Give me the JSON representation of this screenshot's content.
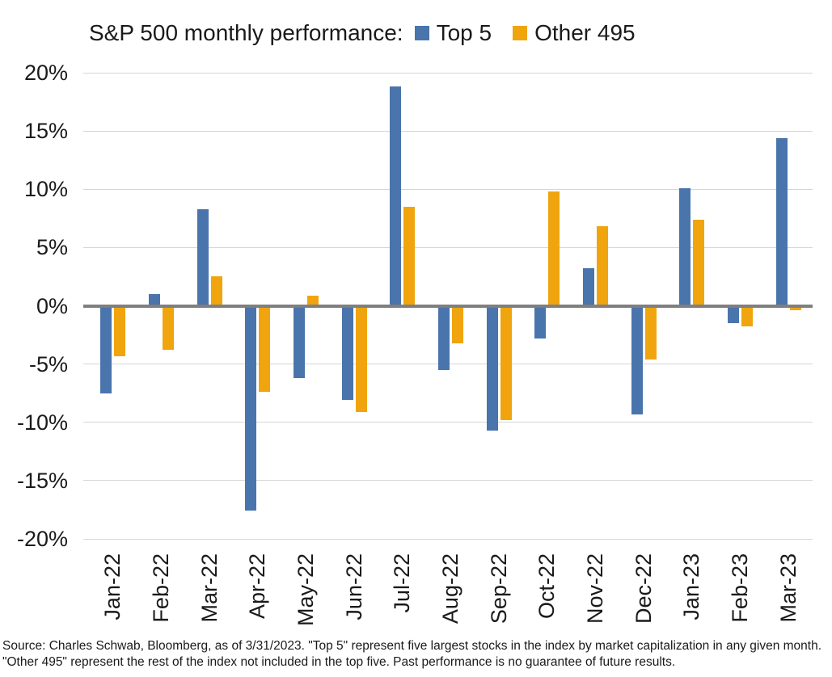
{
  "title": "S&P 500 monthly performance:",
  "legend": [
    {
      "label": "Top 5",
      "color": "#4A74AC"
    },
    {
      "label": "Other 495",
      "color": "#F0A50E"
    }
  ],
  "source_note": "Source: Charles Schwab, Bloomberg, as of 3/31/2023.  \"Top 5\" represent five largest stocks in the index by market capitalization in any given month. \"Other 495\" represent the rest of the index not included in the top five. Past performance is no guarantee of future results.",
  "chart_data": {
    "type": "bar",
    "title": "S&P 500 monthly performance:",
    "categories": [
      "Jan-22",
      "Feb-22",
      "Mar-22",
      "Apr-22",
      "May-22",
      "Jun-22",
      "Jul-22",
      "Aug-22",
      "Sep-22",
      "Oct-22",
      "Nov-22",
      "Dec-22",
      "Jan-23",
      "Feb-23",
      "Mar-23"
    ],
    "series": [
      {
        "name": "Top 5",
        "color": "#4A74AC",
        "values": [
          -7.5,
          1.0,
          8.3,
          -17.6,
          -6.2,
          -8.1,
          18.8,
          -5.5,
          -10.7,
          -2.8,
          3.2,
          -9.3,
          10.1,
          -1.5,
          14.4
        ]
      },
      {
        "name": "Other 495",
        "color": "#F0A50E",
        "values": [
          -4.3,
          -3.8,
          2.5,
          -7.4,
          0.9,
          -9.1,
          8.5,
          -3.2,
          -9.8,
          9.8,
          6.8,
          -4.6,
          7.4,
          -1.8,
          -0.4
        ]
      }
    ],
    "ylim": [
      -20,
      20
    ],
    "ytick_step": 5,
    "ytick_labels": [
      "20%",
      "15%",
      "10%",
      "5%",
      "0%",
      "-5%",
      "-10%",
      "-15%",
      "-20%"
    ],
    "xlabel": "",
    "ylabel": "",
    "grid": true,
    "legend_position": "top",
    "zero_line_color": "#7f7f7f",
    "gridline_color": "#d6d6d6"
  }
}
